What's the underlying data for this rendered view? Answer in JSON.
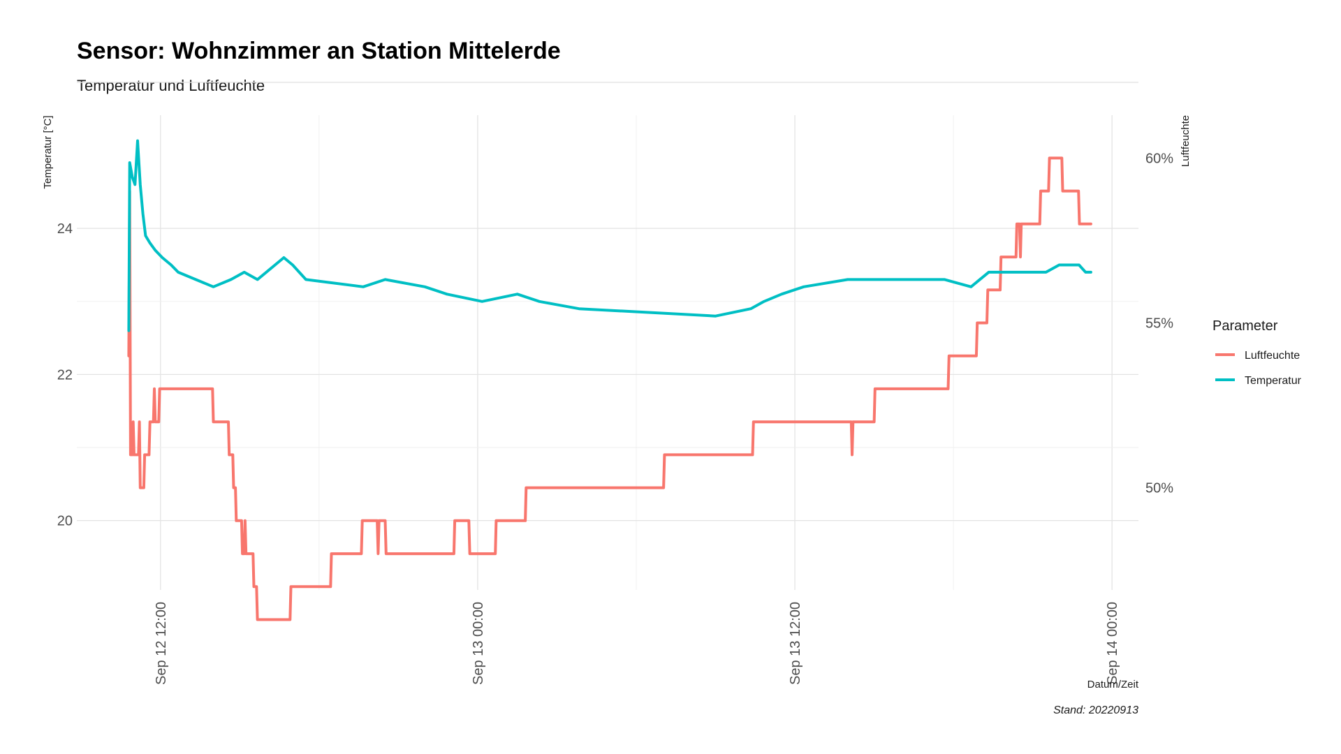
{
  "chart_data": {
    "type": "line",
    "title": "Sensor: Wohnzimmer an Station Mittelerde",
    "subtitle": "Temperatur und Luftfeuchte",
    "xlabel": "Datum/Zeit",
    "ylabel": "Temperatur [°C]",
    "y2label": "Luftfeuchte",
    "caption": "Stand: 20220913",
    "legend_title": "Parameter",
    "legend_position": "right",
    "grid": true,
    "xlim": [
      "2022-09-12 08:50",
      "2022-09-14 01:00"
    ],
    "ylim": [
      19.05,
      25.55
    ],
    "y2lim": [
      46.9,
      61.3
    ],
    "x_ticks": [
      {
        "value": "2022-09-12 12:00",
        "label": "Sep 12 12:00"
      },
      {
        "value": "2022-09-13 00:00",
        "label": "Sep 13 00:00"
      },
      {
        "value": "2022-09-13 12:00",
        "label": "Sep 13 12:00"
      },
      {
        "value": "2022-09-14 00:00",
        "label": "Sep 14 00:00"
      }
    ],
    "y_ticks": [
      {
        "value": 20,
        "label": "20"
      },
      {
        "value": 22,
        "label": "22"
      },
      {
        "value": 24,
        "label": "24"
      }
    ],
    "y2_ticks": [
      {
        "value": 50,
        "label": "50%"
      },
      {
        "value": 55,
        "label": "55%"
      },
      {
        "value": 60,
        "label": "60%"
      }
    ],
    "series": [
      {
        "name": "Luftfeuchte",
        "axis": "right",
        "color": "#F8766D",
        "points": [
          [
            "2022-09-12 10:48",
            54.0
          ],
          [
            "2022-09-12 10:50",
            59.0
          ],
          [
            "2022-09-12 10:52",
            51.0
          ],
          [
            "2022-09-12 10:56",
            51.0
          ],
          [
            "2022-09-12 10:58",
            52.0
          ],
          [
            "2022-09-12 11:00",
            51.0
          ],
          [
            "2022-09-12 11:10",
            51.0
          ],
          [
            "2022-09-12 11:12",
            52.0
          ],
          [
            "2022-09-12 11:14",
            50.0
          ],
          [
            "2022-09-12 11:22",
            50.0
          ],
          [
            "2022-09-12 11:24",
            51.0
          ],
          [
            "2022-09-12 11:34",
            51.0
          ],
          [
            "2022-09-12 11:36",
            52.0
          ],
          [
            "2022-09-12 11:44",
            52.0
          ],
          [
            "2022-09-12 11:46",
            53.0
          ],
          [
            "2022-09-12 11:48",
            52.0
          ],
          [
            "2022-09-12 11:56",
            52.0
          ],
          [
            "2022-09-12 11:58",
            53.0
          ],
          [
            "2022-09-12 13:58",
            53.0
          ],
          [
            "2022-09-12 14:00",
            52.0
          ],
          [
            "2022-09-12 14:34",
            52.0
          ],
          [
            "2022-09-12 14:36",
            51.0
          ],
          [
            "2022-09-12 14:44",
            51.0
          ],
          [
            "2022-09-12 14:46",
            50.0
          ],
          [
            "2022-09-12 14:50",
            50.0
          ],
          [
            "2022-09-12 14:52",
            49.0
          ],
          [
            "2022-09-12 15:04",
            49.0
          ],
          [
            "2022-09-12 15:06",
            48.0
          ],
          [
            "2022-09-12 15:10",
            48.0
          ],
          [
            "2022-09-12 15:12",
            49.0
          ],
          [
            "2022-09-12 15:14",
            48.0
          ],
          [
            "2022-09-12 15:30",
            48.0
          ],
          [
            "2022-09-12 15:32",
            47.0
          ],
          [
            "2022-09-12 15:38",
            47.0
          ],
          [
            "2022-09-12 15:40",
            46.0
          ],
          [
            "2022-09-12 16:54",
            46.0
          ],
          [
            "2022-09-12 16:56",
            47.0
          ],
          [
            "2022-09-12 18:26",
            47.0
          ],
          [
            "2022-09-12 18:28",
            48.0
          ],
          [
            "2022-09-12 19:36",
            48.0
          ],
          [
            "2022-09-12 19:38",
            49.0
          ],
          [
            "2022-09-12 20:12",
            49.0
          ],
          [
            "2022-09-12 20:14",
            48.0
          ],
          [
            "2022-09-12 20:16",
            49.0
          ],
          [
            "2022-09-12 20:30",
            49.0
          ],
          [
            "2022-09-12 20:32",
            48.0
          ],
          [
            "2022-09-12 23:06",
            48.0
          ],
          [
            "2022-09-12 23:08",
            49.0
          ],
          [
            "2022-09-12 23:40",
            49.0
          ],
          [
            "2022-09-12 23:42",
            48.0
          ],
          [
            "2022-09-13 00:40",
            48.0
          ],
          [
            "2022-09-13 00:42",
            49.0
          ],
          [
            "2022-09-13 01:48",
            49.0
          ],
          [
            "2022-09-13 01:50",
            50.0
          ],
          [
            "2022-09-13 07:02",
            50.0
          ],
          [
            "2022-09-13 07:04",
            51.0
          ],
          [
            "2022-09-13 10:24",
            51.0
          ],
          [
            "2022-09-13 10:26",
            52.0
          ],
          [
            "2022-09-13 14:08",
            52.0
          ],
          [
            "2022-09-13 14:10",
            51.0
          ],
          [
            "2022-09-13 14:12",
            52.0
          ],
          [
            "2022-09-13 15:00",
            52.0
          ],
          [
            "2022-09-13 15:02",
            53.0
          ],
          [
            "2022-09-13 17:48",
            53.0
          ],
          [
            "2022-09-13 17:50",
            54.0
          ],
          [
            "2022-09-13 18:52",
            54.0
          ],
          [
            "2022-09-13 18:54",
            55.0
          ],
          [
            "2022-09-13 19:16",
            55.0
          ],
          [
            "2022-09-13 19:18",
            56.0
          ],
          [
            "2022-09-13 19:46",
            56.0
          ],
          [
            "2022-09-13 19:48",
            57.0
          ],
          [
            "2022-09-13 20:22",
            57.0
          ],
          [
            "2022-09-13 20:24",
            58.0
          ],
          [
            "2022-09-13 20:30",
            58.0
          ],
          [
            "2022-09-13 20:32",
            57.0
          ],
          [
            "2022-09-13 20:34",
            58.0
          ],
          [
            "2022-09-13 21:16",
            58.0
          ],
          [
            "2022-09-13 21:18",
            59.0
          ],
          [
            "2022-09-13 21:36",
            59.0
          ],
          [
            "2022-09-13 21:38",
            60.0
          ],
          [
            "2022-09-13 22:06",
            60.0
          ],
          [
            "2022-09-13 22:08",
            59.0
          ],
          [
            "2022-09-13 22:44",
            59.0
          ],
          [
            "2022-09-13 22:46",
            58.0
          ],
          [
            "2022-09-13 23:12",
            58.0
          ]
        ]
      },
      {
        "name": "Temperatur",
        "axis": "left",
        "color": "#00BFC4",
        "points": [
          [
            "2022-09-12 10:48",
            22.6
          ],
          [
            "2022-09-12 10:50",
            24.9
          ],
          [
            "2022-09-12 10:56",
            24.7
          ],
          [
            "2022-09-12 11:02",
            24.6
          ],
          [
            "2022-09-12 11:08",
            25.2
          ],
          [
            "2022-09-12 11:14",
            24.6
          ],
          [
            "2022-09-12 11:20",
            24.2
          ],
          [
            "2022-09-12 11:26",
            23.9
          ],
          [
            "2022-09-12 11:36",
            23.8
          ],
          [
            "2022-09-12 11:48",
            23.7
          ],
          [
            "2022-09-12 12:04",
            23.6
          ],
          [
            "2022-09-12 12:24",
            23.5
          ],
          [
            "2022-09-12 12:40",
            23.4
          ],
          [
            "2022-09-12 13:20",
            23.3
          ],
          [
            "2022-09-12 14:00",
            23.2
          ],
          [
            "2022-09-12 14:40",
            23.3
          ],
          [
            "2022-09-12 15:10",
            23.4
          ],
          [
            "2022-09-12 15:40",
            23.3
          ],
          [
            "2022-09-12 16:20",
            23.5
          ],
          [
            "2022-09-12 16:40",
            23.6
          ],
          [
            "2022-09-12 17:00",
            23.5
          ],
          [
            "2022-09-12 17:30",
            23.3
          ],
          [
            "2022-09-12 19:40",
            23.2
          ],
          [
            "2022-09-12 20:30",
            23.3
          ],
          [
            "2022-09-12 22:00",
            23.2
          ],
          [
            "2022-09-12 22:50",
            23.1
          ],
          [
            "2022-09-13 00:10",
            23.0
          ],
          [
            "2022-09-13 01:30",
            23.1
          ],
          [
            "2022-09-13 02:20",
            23.0
          ],
          [
            "2022-09-13 03:50",
            22.9
          ],
          [
            "2022-09-13 09:00",
            22.8
          ],
          [
            "2022-09-13 10:20",
            22.9
          ],
          [
            "2022-09-13 10:50",
            23.0
          ],
          [
            "2022-09-13 11:30",
            23.1
          ],
          [
            "2022-09-13 12:20",
            23.2
          ],
          [
            "2022-09-13 14:00",
            23.3
          ],
          [
            "2022-09-13 16:00",
            23.3
          ],
          [
            "2022-09-13 17:40",
            23.3
          ],
          [
            "2022-09-13 18:40",
            23.2
          ],
          [
            "2022-09-13 19:20",
            23.4
          ],
          [
            "2022-09-13 21:30",
            23.4
          ],
          [
            "2022-09-13 22:00",
            23.5
          ],
          [
            "2022-09-13 22:45",
            23.5
          ],
          [
            "2022-09-13 23:00",
            23.4
          ],
          [
            "2022-09-13 23:12",
            23.4
          ]
        ]
      }
    ]
  }
}
